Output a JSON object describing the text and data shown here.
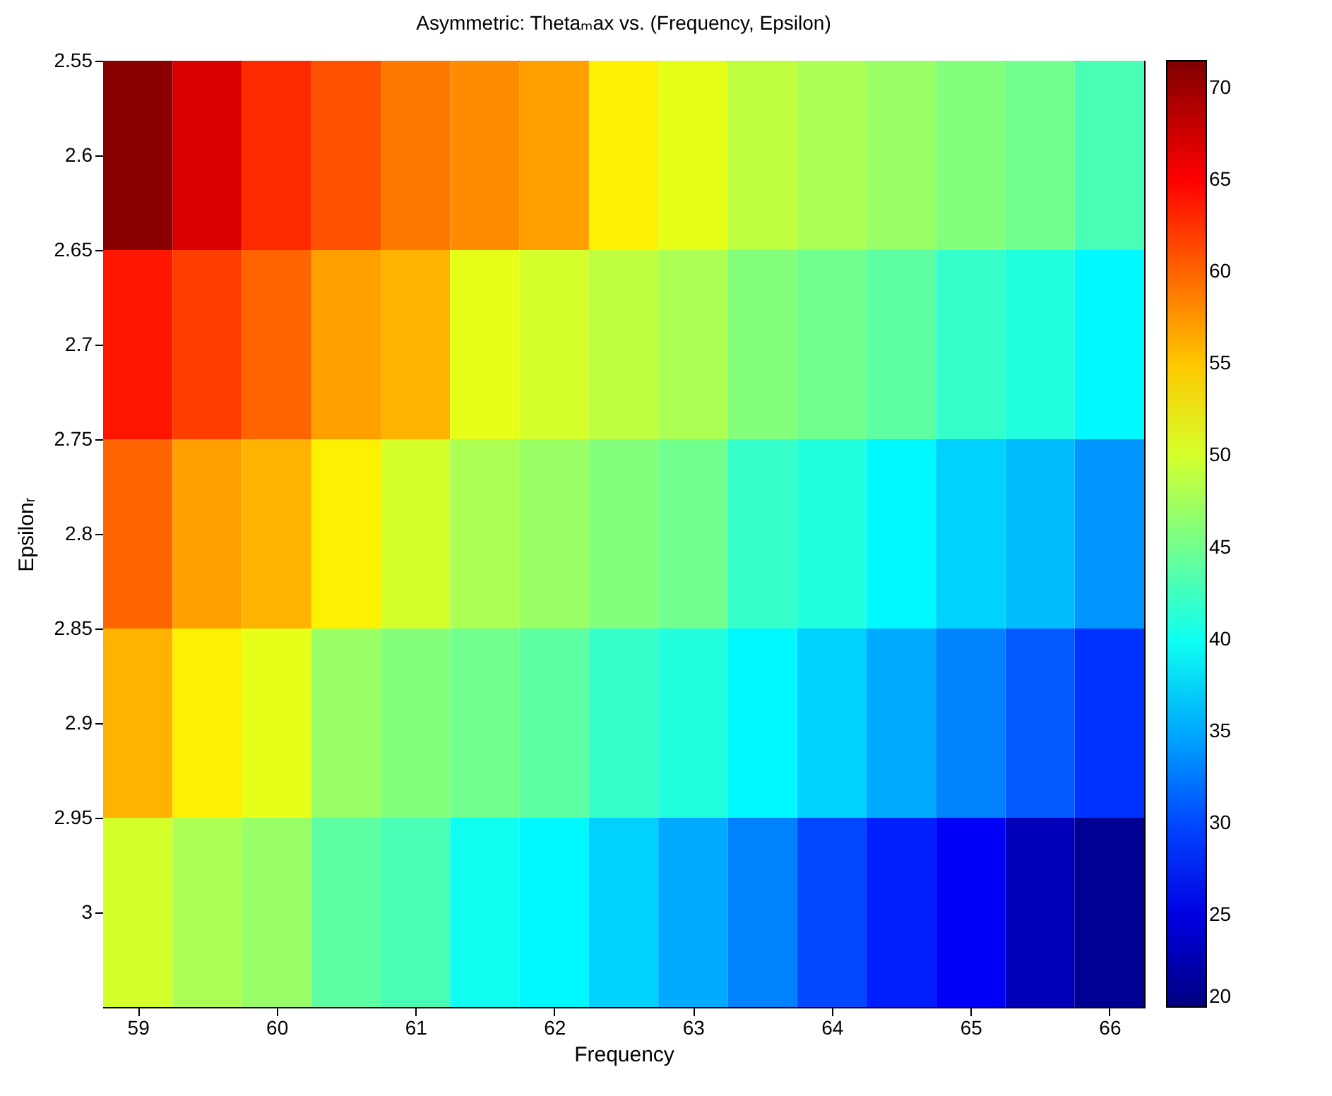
{
  "chart_data": {
    "type": "heatmap",
    "title": "Asymmetric: Thetaₘax vs. (Frequency, Epsilon)",
    "xlabel": "Frequency",
    "ylabel": "Epsilonᵣ",
    "x": [
      59,
      59.5,
      60,
      60.5,
      61,
      61.5,
      62,
      62.5,
      63,
      63.5,
      64,
      64.5,
      65,
      65.5,
      66
    ],
    "cells": [
      [
        71,
        67,
        63,
        61,
        59,
        58,
        57,
        53,
        51,
        49,
        48,
        47,
        46,
        45,
        43
      ],
      [
        64,
        62,
        60,
        57,
        56,
        51,
        50,
        49,
        48,
        46,
        45,
        44,
        42,
        41,
        39
      ],
      [
        60,
        57,
        56,
        53,
        50,
        48,
        47,
        46,
        45,
        42,
        41,
        39,
        37,
        36,
        34
      ],
      [
        56,
        53,
        51,
        47,
        46,
        45,
        44,
        42,
        41,
        39,
        37,
        35,
        33,
        31,
        29
      ],
      [
        50,
        48,
        47,
        44,
        43,
        40,
        39,
        37,
        35,
        33,
        30,
        28,
        26,
        23,
        21
      ]
    ],
    "xlim": [
      58.75,
      66.25
    ],
    "xticks": [
      59,
      60,
      61,
      62,
      63,
      64,
      65,
      66
    ],
    "ylim": [
      3.05,
      2.55
    ],
    "yticks": [
      2.55,
      2.6,
      2.65,
      2.7,
      2.75,
      2.8,
      2.85,
      2.9,
      2.95,
      3
    ],
    "clim": [
      20,
      71.5
    ],
    "cticks": [
      20,
      25,
      30,
      35,
      40,
      45,
      50,
      55,
      60,
      65,
      70
    ]
  }
}
